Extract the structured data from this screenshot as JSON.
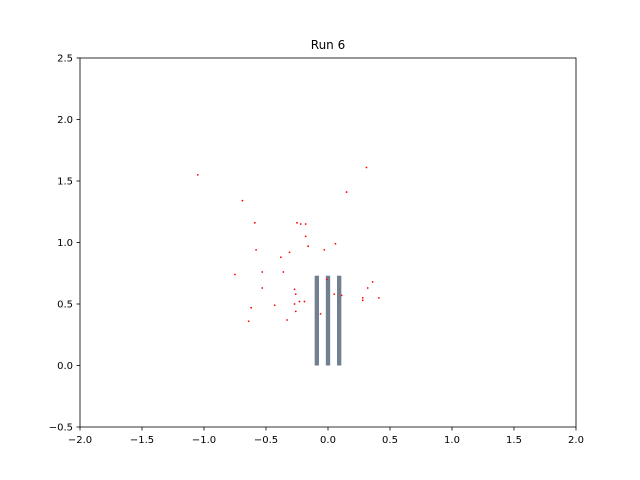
{
  "chart_data": {
    "type": "scatter",
    "title": "Run 6",
    "xlabel": "",
    "ylabel": "",
    "xlim": [
      -2.0,
      2.0
    ],
    "ylim": [
      -0.5,
      2.5
    ],
    "grid": false,
    "x_ticks": [
      -2.0,
      -1.5,
      -1.0,
      -0.5,
      0.0,
      0.5,
      1.0,
      1.5,
      2.0
    ],
    "x_tick_labels": [
      "−2.0",
      "−1.5",
      "−1.0",
      "−0.5",
      "0.0",
      "0.5",
      "1.0",
      "1.5",
      "2.0"
    ],
    "y_ticks": [
      -0.5,
      0.0,
      0.5,
      1.0,
      1.5,
      2.0,
      2.5
    ],
    "y_tick_labels": [
      "−0.5",
      "0.0",
      "0.5",
      "1.0",
      "1.5",
      "2.0",
      "2.5"
    ],
    "bars": {
      "color": "#708090",
      "x": [
        -0.09,
        0.0,
        0.09
      ],
      "bottom": 0.0,
      "top": 0.73,
      "width": 0.035
    },
    "points": {
      "color": "#ff0000",
      "x": [
        -1.05,
        -0.69,
        -0.59,
        0.31,
        0.15,
        -0.58,
        -0.22,
        -0.25,
        -0.18,
        -0.18,
        0.06,
        -0.03,
        -0.31,
        -0.16,
        -0.75,
        -0.53,
        -0.38,
        -0.36,
        -0.01,
        -0.53,
        -0.27,
        -0.26,
        -0.23,
        -0.19,
        -0.27,
        -0.26,
        -0.43,
        -0.62,
        -0.33,
        -0.64,
        0.36,
        0.32,
        0.28,
        0.28,
        0.41,
        0.05,
        0.11,
        -0.06
      ],
      "y": [
        1.55,
        1.34,
        1.16,
        1.61,
        1.41,
        0.94,
        1.15,
        1.16,
        1.15,
        1.05,
        0.99,
        0.94,
        0.92,
        0.97,
        0.74,
        0.76,
        0.88,
        0.76,
        0.7,
        0.63,
        0.62,
        0.58,
        0.52,
        0.52,
        0.5,
        0.44,
        0.49,
        0.47,
        0.37,
        0.36,
        0.68,
        0.63,
        0.55,
        0.53,
        0.55,
        0.58,
        0.57,
        0.42
      ]
    }
  }
}
